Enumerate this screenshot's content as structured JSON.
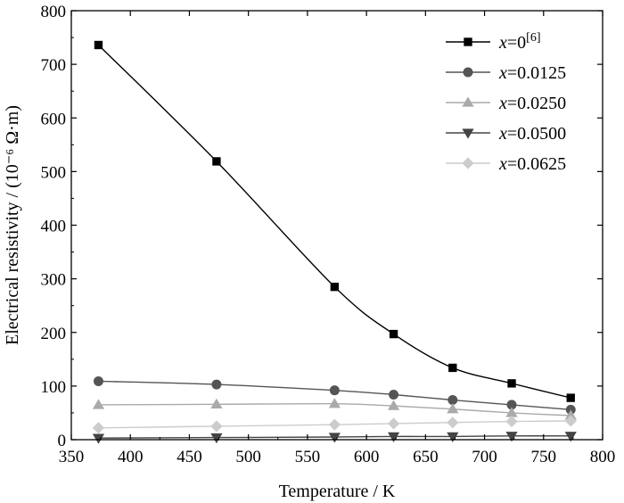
{
  "chart_data": {
    "type": "line",
    "xlabel": "Temperature / K",
    "ylabel": "Electrical resistivity / (10⁻⁶ Ω·m)",
    "xlim": [
      350,
      800
    ],
    "ylim": [
      0,
      800
    ],
    "xticks": [
      350,
      400,
      450,
      500,
      550,
      600,
      650,
      700,
      750,
      800
    ],
    "yticks": [
      0,
      100,
      200,
      300,
      400,
      500,
      600,
      700,
      800
    ],
    "grid": false,
    "legend_position": "top-right",
    "series": [
      {
        "name": "x=0[6]",
        "label_var": "x",
        "label_rest": "=0",
        "label_sup": "[6]",
        "marker": "square",
        "color": "#000000",
        "x": [
          373,
          473,
          573,
          623,
          673,
          723,
          773
        ],
        "y": [
          736,
          519,
          285,
          197,
          134,
          105,
          78
        ]
      },
      {
        "name": "x=0.0125",
        "label_var": "x",
        "label_rest": "=0.0125",
        "label_sup": "",
        "marker": "circle",
        "color": "#555555",
        "x": [
          373,
          473,
          573,
          623,
          673,
          723,
          773
        ],
        "y": [
          109,
          103,
          92,
          84,
          74,
          65,
          56
        ]
      },
      {
        "name": "x=0.0250",
        "label_var": "x",
        "label_rest": "=0.0250",
        "label_sup": "",
        "marker": "triangle-up",
        "color": "#aaaaaa",
        "x": [
          373,
          473,
          573,
          623,
          673,
          723,
          773
        ],
        "y": [
          65,
          66,
          67,
          63,
          57,
          50,
          45
        ]
      },
      {
        "name": "x=0.0500",
        "label_var": "x",
        "label_rest": "=0.0500",
        "label_sup": "",
        "marker": "triangle-down",
        "color": "#444444",
        "x": [
          373,
          473,
          573,
          623,
          673,
          723,
          773
        ],
        "y": [
          3,
          4,
          5,
          6,
          6,
          7,
          7
        ]
      },
      {
        "name": "x=0.0625",
        "label_var": "x",
        "label_rest": "=0.0625",
        "label_sup": "",
        "marker": "diamond",
        "color": "#cccccc",
        "x": [
          373,
          473,
          573,
          623,
          673,
          723,
          773
        ],
        "y": [
          22,
          25,
          28,
          30,
          32,
          34,
          35
        ]
      }
    ]
  }
}
